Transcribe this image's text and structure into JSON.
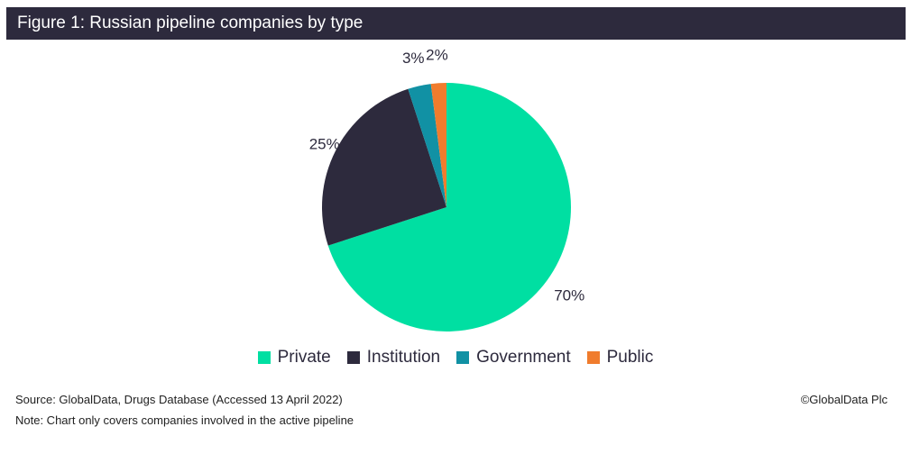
{
  "title": "Figure 1: Russian pipeline companies by type",
  "source": "Source: GlobalData, Drugs Database (Accessed 13 April 2022)",
  "note": "Note: Chart only covers companies involved in the active pipeline",
  "copyright": "©GlobalData Plc",
  "chart_data": {
    "type": "pie",
    "categories": [
      "Private",
      "Institution",
      "Government",
      "Public"
    ],
    "values": [
      70,
      25,
      3,
      2
    ],
    "labels": [
      "70%",
      "25%",
      "3%",
      "2%"
    ],
    "colors": [
      "#00dfa2",
      "#2d2a3d",
      "#1191a4",
      "#f07c2d"
    ],
    "legend": "bottom"
  }
}
